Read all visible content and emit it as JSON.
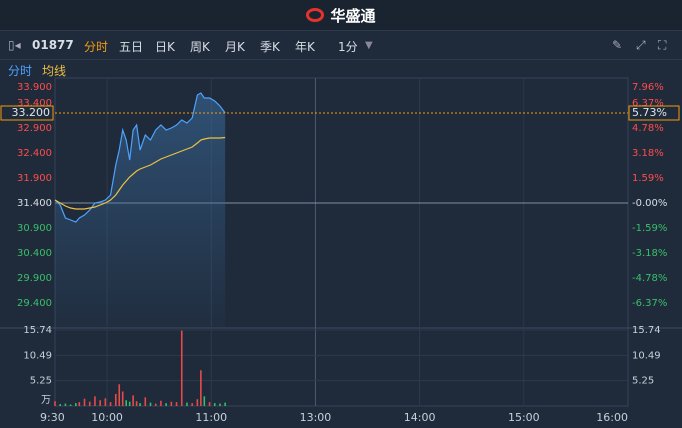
{
  "header": {
    "brand": "华盛通"
  },
  "toolbar": {
    "code": "01877",
    "tabs": [
      "分时",
      "五日",
      "日K",
      "周K",
      "月K",
      "季K",
      "年K"
    ],
    "interval": "1分"
  },
  "chart_data": [
    {
      "type": "line",
      "x": [
        0,
        3,
        6,
        9,
        12,
        14,
        17,
        20,
        23,
        26,
        29,
        32,
        35,
        37,
        39,
        41,
        43,
        45,
        47,
        49,
        52,
        55,
        58,
        61,
        64,
        67,
        70,
        73,
        76,
        79,
        82,
        84,
        86,
        89,
        92,
        95,
        98
      ],
      "series": [
        {
          "name": "分时",
          "color": "#4da3ff",
          "values": [
            31.46,
            31.36,
            31.1,
            31.06,
            31.02,
            31.1,
            31.16,
            31.26,
            31.4,
            31.42,
            31.46,
            31.56,
            32.16,
            32.46,
            32.86,
            32.66,
            32.26,
            32.86,
            32.96,
            32.46,
            32.76,
            32.66,
            32.86,
            32.96,
            32.86,
            32.9,
            32.96,
            33.06,
            33.0,
            33.1,
            33.56,
            33.6,
            33.5,
            33.5,
            33.44,
            33.34,
            33.2
          ]
        },
        {
          "name": "均线",
          "color": "#f0c040",
          "values": [
            31.46,
            31.4,
            31.34,
            31.3,
            31.28,
            31.28,
            31.28,
            31.3,
            31.32,
            31.36,
            31.4,
            31.46,
            31.56,
            31.66,
            31.76,
            31.84,
            31.92,
            31.98,
            32.04,
            32.08,
            32.12,
            32.16,
            32.22,
            32.28,
            32.32,
            32.36,
            32.4,
            32.44,
            32.48,
            32.52,
            32.6,
            32.66,
            32.68,
            32.7,
            32.7,
            32.7,
            32.71
          ]
        }
      ],
      "xlim": [
        0,
        330
      ],
      "ylim": [
        28.9,
        33.9
      ],
      "yticks": [
        {
          "value": 33.9,
          "label": "33.900"
        },
        {
          "value": 33.4,
          "label": "33.400"
        },
        {
          "value": 32.9,
          "label": "32.900"
        },
        {
          "value": 32.4,
          "label": "32.400"
        },
        {
          "value": 31.9,
          "label": "31.900"
        },
        {
          "value": 31.4,
          "label": "31.400"
        },
        {
          "value": 30.9,
          "label": "30.900"
        },
        {
          "value": 30.4,
          "label": "30.400"
        },
        {
          "value": 29.9,
          "label": "29.900"
        },
        {
          "value": 29.4,
          "label": "29.400"
        }
      ],
      "y2lim": [
        -7.96,
        7.96
      ],
      "y2ticks": [
        {
          "value": 7.96,
          "label": "7.96%"
        },
        {
          "value": 6.37,
          "label": "6.37%"
        },
        {
          "value": 4.78,
          "label": "4.78%"
        },
        {
          "value": 3.18,
          "label": "3.18%"
        },
        {
          "value": 1.59,
          "label": "1.59%"
        },
        {
          "value": 0,
          "label": "-0.00%"
        },
        {
          "value": -1.59,
          "label": "-1.59%"
        },
        {
          "value": -3.18,
          "label": "-3.18%"
        },
        {
          "value": -4.78,
          "label": "-4.78%"
        },
        {
          "value": -6.37,
          "label": "-6.37%"
        }
      ],
      "last_price": {
        "value": 33.2,
        "label": "33.200"
      },
      "last_change": {
        "value": 5.73,
        "label": "5.73%"
      }
    },
    {
      "type": "bar",
      "x": [
        0,
        3,
        6,
        9,
        12,
        14,
        17,
        20,
        23,
        26,
        29,
        32,
        35,
        37,
        39,
        41,
        43,
        45,
        47,
        49,
        52,
        55,
        58,
        61,
        64,
        67,
        70,
        73,
        76,
        79,
        82,
        84,
        86,
        89,
        92,
        95,
        98
      ],
      "values": [
        1.0,
        0.4,
        0.5,
        0.3,
        0.6,
        0.8,
        1.5,
        0.9,
        2.0,
        1.2,
        1.6,
        0.8,
        2.5,
        4.5,
        3.0,
        1.2,
        0.9,
        2.2,
        1.0,
        0.6,
        1.8,
        0.7,
        0.5,
        1.1,
        0.6,
        0.9,
        0.8,
        15.6,
        0.7,
        0.6,
        1.4,
        7.4,
        2.0,
        0.8,
        0.6,
        0.5,
        0.7
      ],
      "up_color": "#e84a4a",
      "down_color": "#2fbf71",
      "xlim": [
        0,
        330
      ],
      "ylim": [
        0,
        16.15
      ],
      "yticks": [
        15.74,
        10.49,
        5.25
      ],
      "y_unit": "万",
      "xticks": [
        {
          "value": 0,
          "label": "9:30"
        },
        {
          "value": 30,
          "label": "10:00"
        },
        {
          "value": 90,
          "label": "11:00"
        },
        {
          "value": 150,
          "label": "13:00"
        },
        {
          "value": 210,
          "label": "14:00"
        },
        {
          "value": 270,
          "label": "15:00"
        },
        {
          "value": 330,
          "label": "16:00"
        }
      ]
    }
  ]
}
